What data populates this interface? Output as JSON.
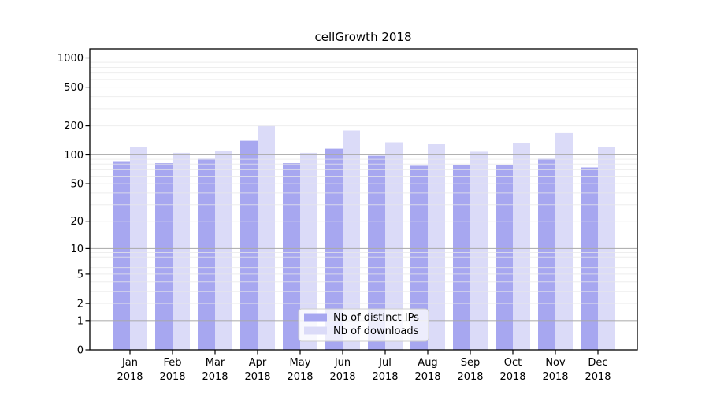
{
  "chart_data": {
    "type": "bar",
    "title": "cellGrowth 2018",
    "categories": [
      "Jan",
      "Feb",
      "Mar",
      "Apr",
      "May",
      "Jun",
      "Jul",
      "Aug",
      "Sep",
      "Oct",
      "Nov",
      "Dec"
    ],
    "x_sub_label": "2018",
    "series": [
      {
        "name": "Nb of distinct IPs",
        "color": "#a7a7f0",
        "values": [
          86,
          82,
          91,
          140,
          82,
          116,
          98,
          77,
          79,
          78,
          91,
          74
        ]
      },
      {
        "name": "Nb of downloads",
        "color": "#dbdbf8",
        "values": [
          120,
          105,
          109,
          200,
          105,
          179,
          135,
          129,
          108,
          132,
          168,
          121
        ]
      }
    ],
    "y_axis": {
      "scale": "log1p",
      "ticks": [
        0,
        1,
        2,
        5,
        10,
        20,
        50,
        100,
        200,
        500,
        1000
      ],
      "range": [
        0,
        1100
      ]
    },
    "grid": {
      "major": [
        1,
        10,
        100,
        1000
      ],
      "minor": [
        2,
        3,
        4,
        5,
        6,
        7,
        8,
        9,
        20,
        30,
        40,
        50,
        60,
        70,
        80,
        90,
        200,
        300,
        400,
        500,
        600,
        700,
        800,
        900
      ],
      "major_color": "#aaaaaa",
      "minor_color": "#e8e8e8"
    },
    "legend": {
      "position": "lower center",
      "background": "#ffffff",
      "border_color": "#cccccc"
    },
    "axis_color": "#000000"
  }
}
